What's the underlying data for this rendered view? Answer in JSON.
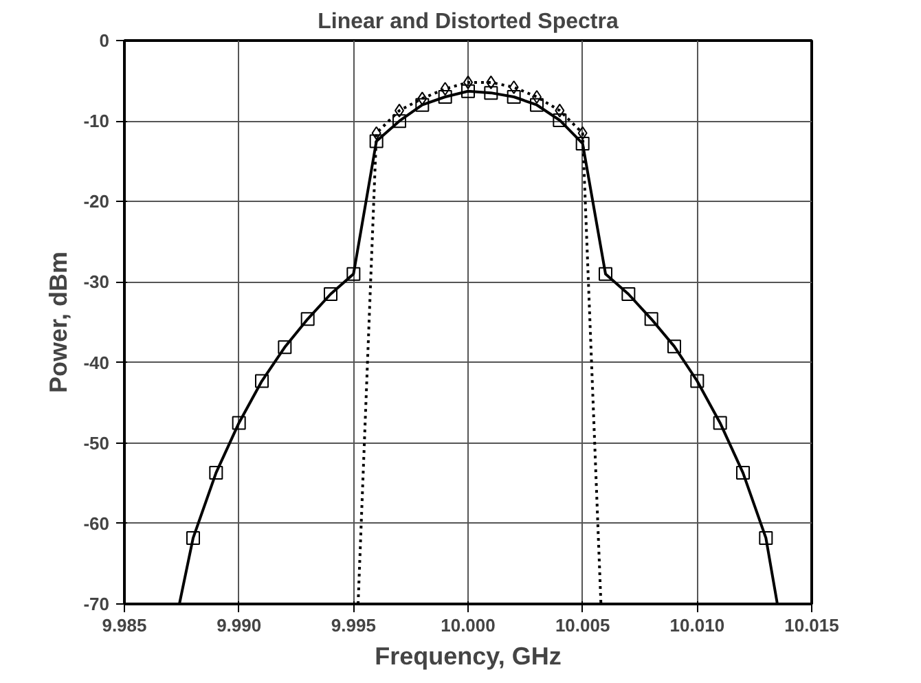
{
  "chart_data": {
    "type": "line",
    "title": "Linear and Distorted Spectra",
    "xlabel": "Frequency, GHz",
    "ylabel": "Power, dBm",
    "xlim": [
      9.985,
      10.015
    ],
    "xticks": [
      {
        "value": 9.985,
        "label": "9.985"
      },
      {
        "value": 9.99,
        "label": "9.990"
      },
      {
        "value": 9.995,
        "label": "9.995"
      },
      {
        "value": 10.0,
        "label": "10.000"
      },
      {
        "value": 10.005,
        "label": "10.005"
      },
      {
        "value": 10.01,
        "label": "10.010"
      },
      {
        "value": 10.015,
        "label": "10.015"
      }
    ],
    "ylim": [
      -70,
      0
    ],
    "yticks": [
      -70,
      -60,
      -50,
      -40,
      -30,
      -20,
      -10,
      0
    ],
    "grid": true,
    "series": [
      {
        "line_style": "solid",
        "marker": "none",
        "color": "#000000",
        "x": [
          9.9874,
          9.988,
          9.989,
          9.99,
          9.991,
          9.992,
          9.993,
          9.994,
          9.995,
          9.996,
          9.997,
          9.998,
          9.999,
          10.0,
          10.001,
          10.002,
          10.003,
          10.004,
          10.005,
          10.006,
          10.007,
          10.008,
          10.009,
          10.01,
          10.011,
          10.012,
          10.013,
          10.0135
        ],
        "values": [
          -70,
          -61.8,
          -53.7,
          -47.5,
          -42.3,
          -38.1,
          -34.6,
          -31.5,
          -29,
          -12.5,
          -10,
          -8,
          -7,
          -6.3,
          -6.5,
          -7,
          -8,
          -9.9,
          -12.8,
          -29,
          -31.5,
          -34.6,
          -38,
          -42.3,
          -47.5,
          -53.7,
          -61.8,
          -70
        ]
      },
      {
        "type": "scatter",
        "marker": "square",
        "color": "#000000",
        "x": [
          9.988,
          9.989,
          9.99,
          9.991,
          9.992,
          9.993,
          9.994,
          9.995,
          9.996,
          9.997,
          9.998,
          9.999,
          10.0,
          10.001,
          10.002,
          10.003,
          10.004,
          10.005,
          10.006,
          10.007,
          10.008,
          10.009,
          10.01,
          10.011,
          10.012,
          10.013
        ],
        "values": [
          -61.8,
          -53.7,
          -47.5,
          -42.3,
          -38.1,
          -34.6,
          -31.5,
          -29,
          -12.5,
          -10,
          -8,
          -7,
          -6.3,
          -6.5,
          -7,
          -8,
          -9.9,
          -12.8,
          -29,
          -31.5,
          -34.6,
          -38,
          -42.3,
          -47.5,
          -53.7,
          -61.8
        ]
      },
      {
        "line_style": "dotted",
        "marker": "none",
        "color": "#000000",
        "x": [
          9.9952,
          9.996,
          9.997,
          9.998,
          9.999,
          10.0,
          10.001,
          10.002,
          10.003,
          10.004,
          10.005,
          10.0058
        ],
        "values": [
          -70,
          -11.5,
          -8.7,
          -7.2,
          -6,
          -5.2,
          -5.2,
          -5.8,
          -7,
          -8.7,
          -11.5,
          -70
        ]
      },
      {
        "type": "scatter",
        "marker": "diamond",
        "color": "#000000",
        "x": [
          9.996,
          9.997,
          9.998,
          9.999,
          10.0,
          10.001,
          10.002,
          10.003,
          10.004,
          10.005
        ],
        "values": [
          -11.5,
          -8.7,
          -7.2,
          -6,
          -5.2,
          -5.2,
          -5.8,
          -7,
          -8.7,
          -11.5
        ]
      }
    ]
  }
}
